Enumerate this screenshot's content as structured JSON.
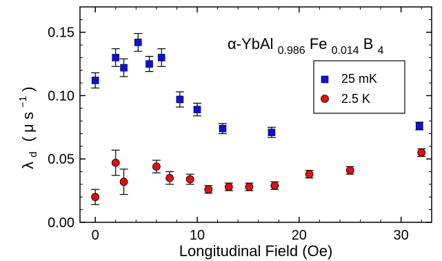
{
  "chart_data": {
    "type": "scatter",
    "title_parts": {
      "base_prefix": "α-YbAl",
      "sub_1": "0.986",
      "base_mid": "Fe",
      "sub_2": "0.014",
      "base_suffix": "B",
      "sub_3": "4"
    },
    "xlabel": "Longitudinal Field (Oe)",
    "ylabel_parts": {
      "lambda": "λ",
      "subscript": "d",
      "paren_open": "(",
      "mu": "μ",
      "s": "s",
      "superscript": "−1",
      "paren_close": ")"
    },
    "xlim": [
      -1.5,
      33.0
    ],
    "ylim": [
      0.0,
      0.17
    ],
    "x_ticks": [
      0,
      10,
      20,
      30
    ],
    "x_tick_labels": [
      "0",
      "10",
      "20",
      "30"
    ],
    "y_ticks": [
      0.0,
      0.05,
      0.1,
      0.15
    ],
    "y_tick_labels": [
      "0.00",
      "0.05",
      "0.10",
      "0.15"
    ],
    "legend_position": "right",
    "series": [
      {
        "name": "25 mK",
        "marker": "square",
        "color": "#1010dd",
        "points": [
          {
            "x": 0.0,
            "y": 0.112,
            "err": 0.006
          },
          {
            "x": 2.0,
            "y": 0.13,
            "err": 0.007
          },
          {
            "x": 2.8,
            "y": 0.122,
            "err": 0.007
          },
          {
            "x": 4.2,
            "y": 0.142,
            "err": 0.007
          },
          {
            "x": 5.3,
            "y": 0.125,
            "err": 0.006
          },
          {
            "x": 6.5,
            "y": 0.13,
            "err": 0.007
          },
          {
            "x": 8.3,
            "y": 0.097,
            "err": 0.006
          },
          {
            "x": 10.0,
            "y": 0.089,
            "err": 0.005
          },
          {
            "x": 12.5,
            "y": 0.074,
            "err": 0.004
          },
          {
            "x": 17.3,
            "y": 0.071,
            "err": 0.004
          },
          {
            "x": 31.8,
            "y": 0.076,
            "err": 0.003
          }
        ]
      },
      {
        "name": "2.5 K",
        "marker": "circle",
        "color": "#e01010",
        "points": [
          {
            "x": 0.0,
            "y": 0.02,
            "err": 0.006
          },
          {
            "x": 2.0,
            "y": 0.047,
            "err": 0.01
          },
          {
            "x": 2.8,
            "y": 0.032,
            "err": 0.01
          },
          {
            "x": 6.0,
            "y": 0.044,
            "err": 0.005
          },
          {
            "x": 7.3,
            "y": 0.035,
            "err": 0.005
          },
          {
            "x": 9.3,
            "y": 0.034,
            "err": 0.004
          },
          {
            "x": 11.1,
            "y": 0.026,
            "err": 0.003
          },
          {
            "x": 13.1,
            "y": 0.028,
            "err": 0.003
          },
          {
            "x": 15.1,
            "y": 0.028,
            "err": 0.003
          },
          {
            "x": 17.6,
            "y": 0.029,
            "err": 0.003
          },
          {
            "x": 21.0,
            "y": 0.038,
            "err": 0.003
          },
          {
            "x": 25.0,
            "y": 0.041,
            "err": 0.003
          },
          {
            "x": 32.0,
            "y": 0.055,
            "err": 0.003
          }
        ]
      }
    ],
    "grid": false,
    "errorbar_color": "#000000"
  }
}
